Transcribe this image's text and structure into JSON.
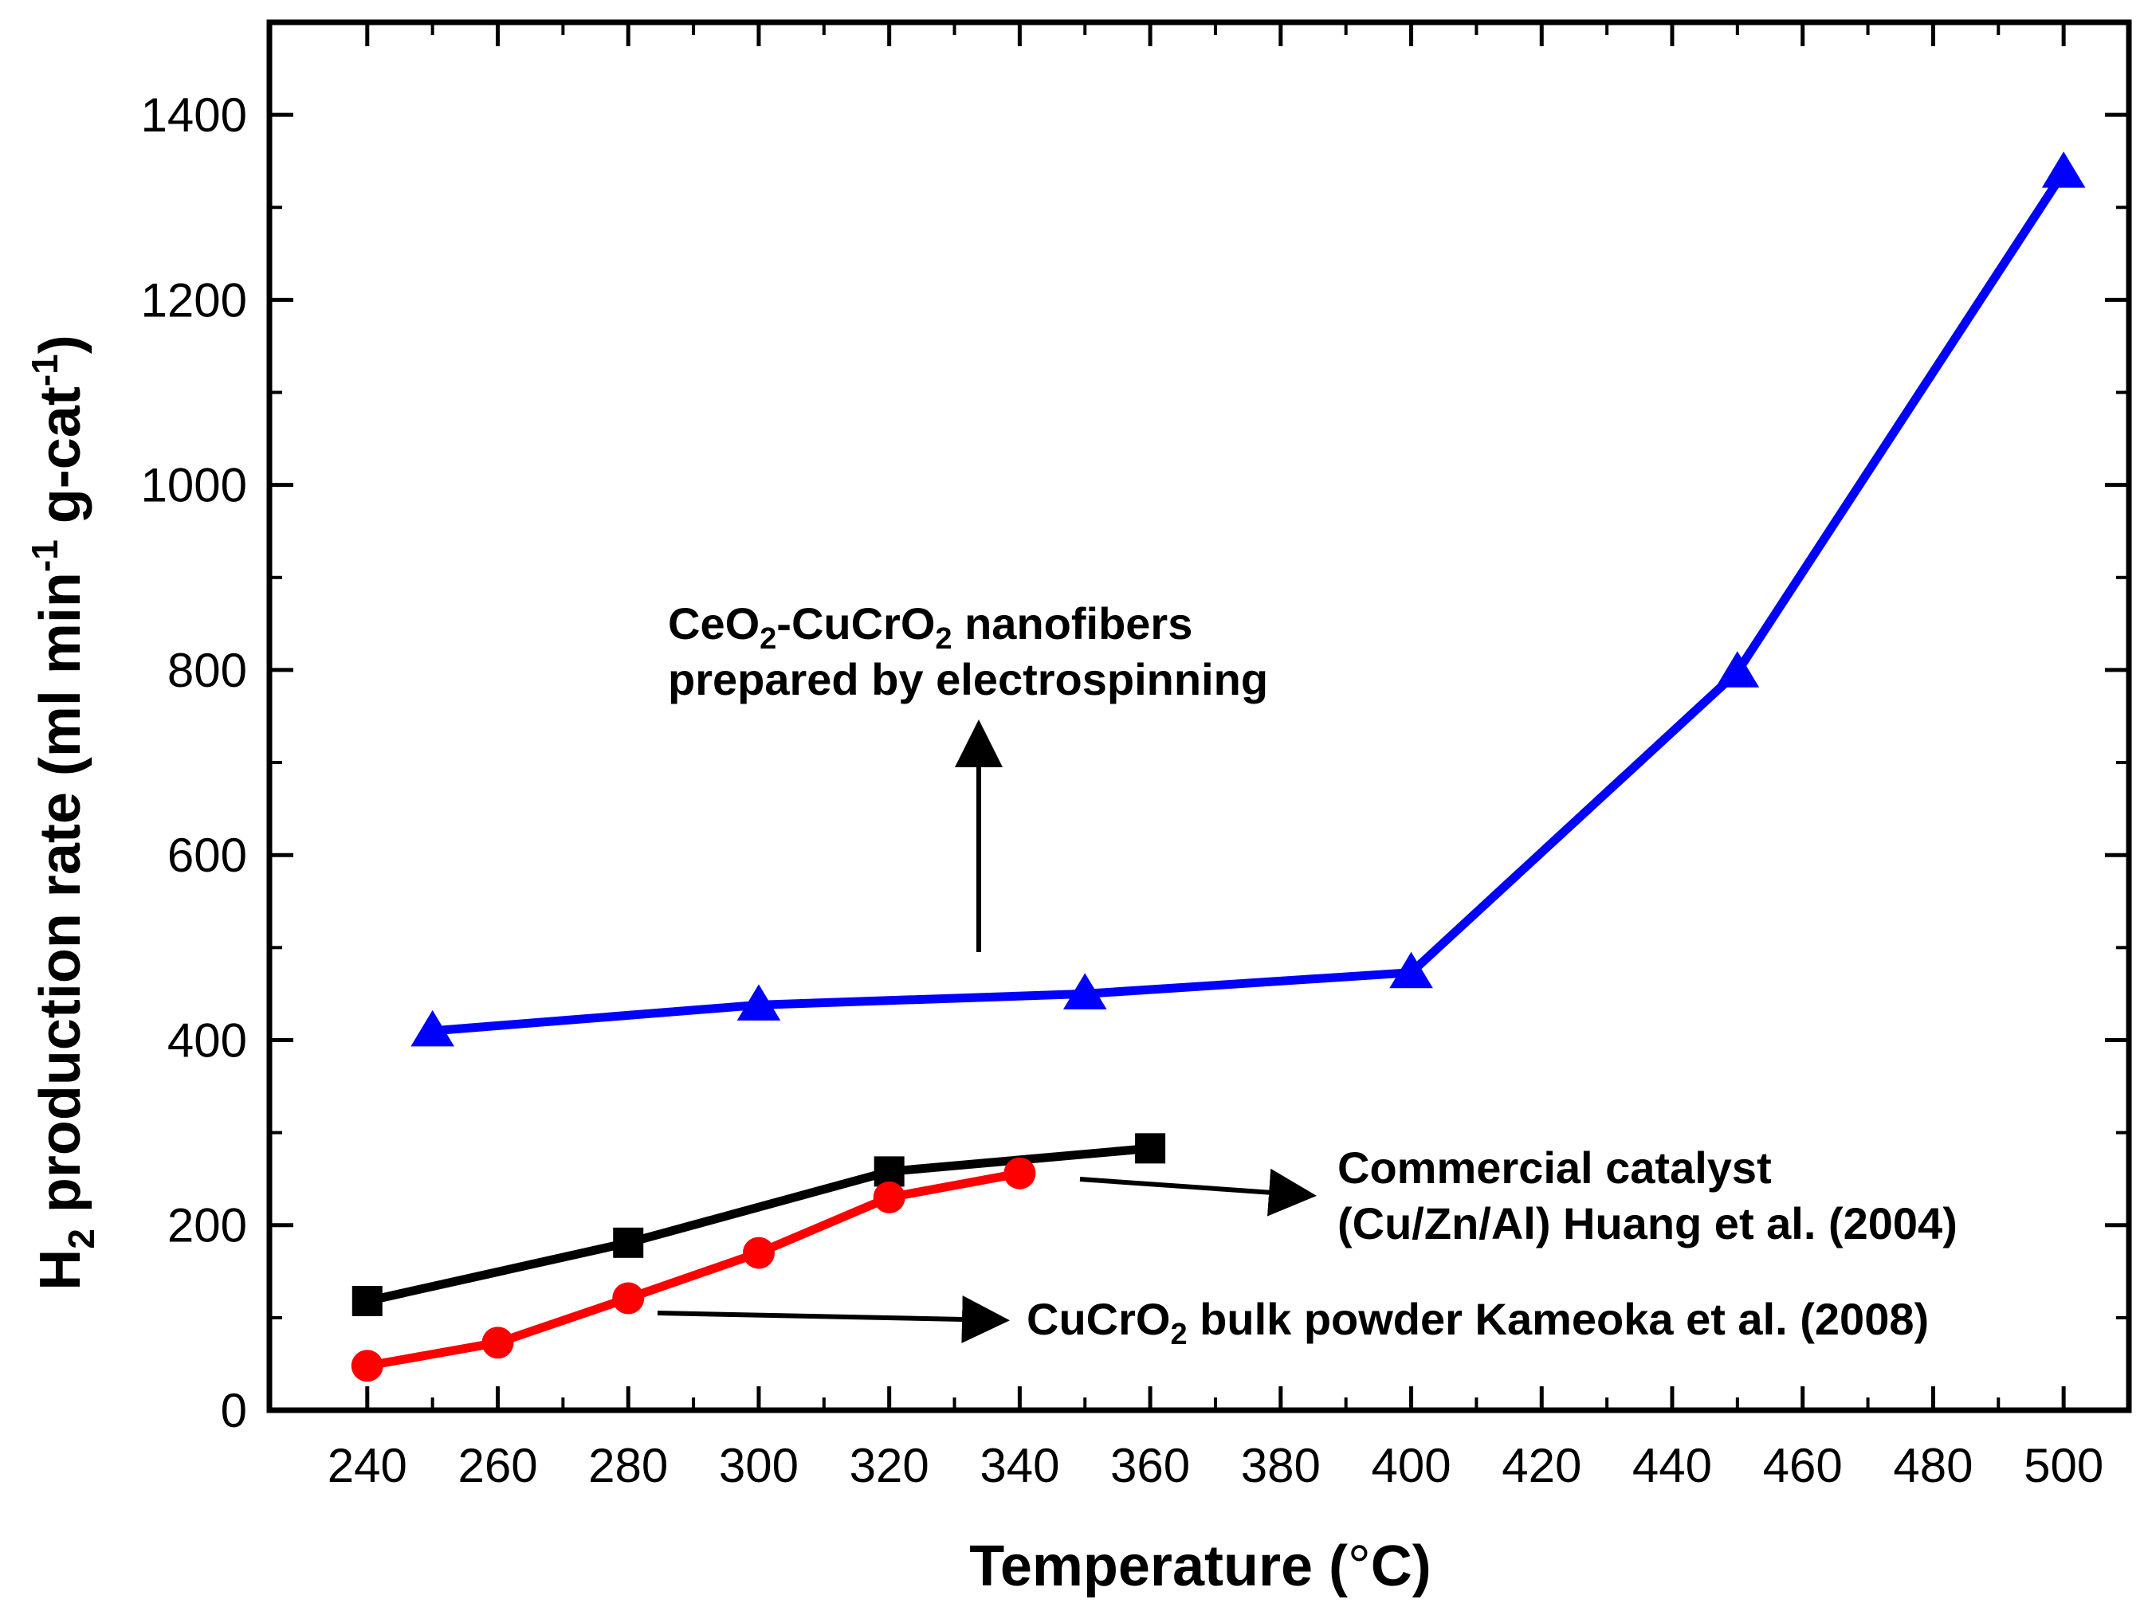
{
  "chart_data": {
    "type": "line",
    "title": "",
    "xlabel": "Temperature (°C)",
    "ylabel": "H2 production rate (ml min-1 g-cat-1)",
    "ylabel_parts": {
      "main": "H",
      "sub": "2",
      "rest": " production rate (ml min",
      "sup1": "-1",
      "mid": " g-cat",
      "sup2": "-1",
      "end": ")"
    },
    "xlim": [
      225,
      510
    ],
    "ylim": [
      0,
      1500
    ],
    "xticks": [
      240,
      260,
      280,
      300,
      320,
      340,
      360,
      380,
      400,
      420,
      440,
      460,
      480,
      500
    ],
    "yticks": [
      0,
      200,
      400,
      600,
      800,
      1000,
      1200,
      1400
    ],
    "series": [
      {
        "name": "CeO2-CuCrO2 nanofibers prepared by electrospinning",
        "color": "#0000ff",
        "marker": "triangle",
        "x": [
          250,
          300,
          350,
          400,
          450,
          500
        ],
        "y": [
          410,
          438,
          450,
          473,
          798,
          1338
        ]
      },
      {
        "name": "Commercial catalyst (Cu/Zn/Al) Huang et al. (2004)",
        "color": "#000000",
        "marker": "square",
        "x": [
          240,
          280,
          320,
          360
        ],
        "y": [
          118,
          181,
          258,
          283
        ]
      },
      {
        "name": "CuCrO2 bulk powder Kameoka et al. (2008)",
        "color": "#ff0000",
        "marker": "circle",
        "x": [
          240,
          260,
          280,
          300,
          320,
          340
        ],
        "y": [
          48,
          73,
          121,
          170,
          230,
          256
        ]
      }
    ],
    "annotations": {
      "ceo2": {
        "line1_pre": "CeO",
        "line1_sub1": "2",
        "line1_mid": "-CuCrO",
        "line1_sub2": "2",
        "line1_post": " nanofibers",
        "line2": "prepared by electrospinning"
      },
      "commercial": {
        "line1": "Commercial catalyst",
        "line2": "(Cu/Zn/Al) Huang et al. (2004)"
      },
      "cucro2": {
        "pre": "CuCrO",
        "sub": "2",
        "post": " bulk powder Kameoka et al. (2008)"
      }
    },
    "xlabel_parts": {
      "pre": "Temperature (",
      "deg": "°",
      "post": "C)"
    }
  }
}
